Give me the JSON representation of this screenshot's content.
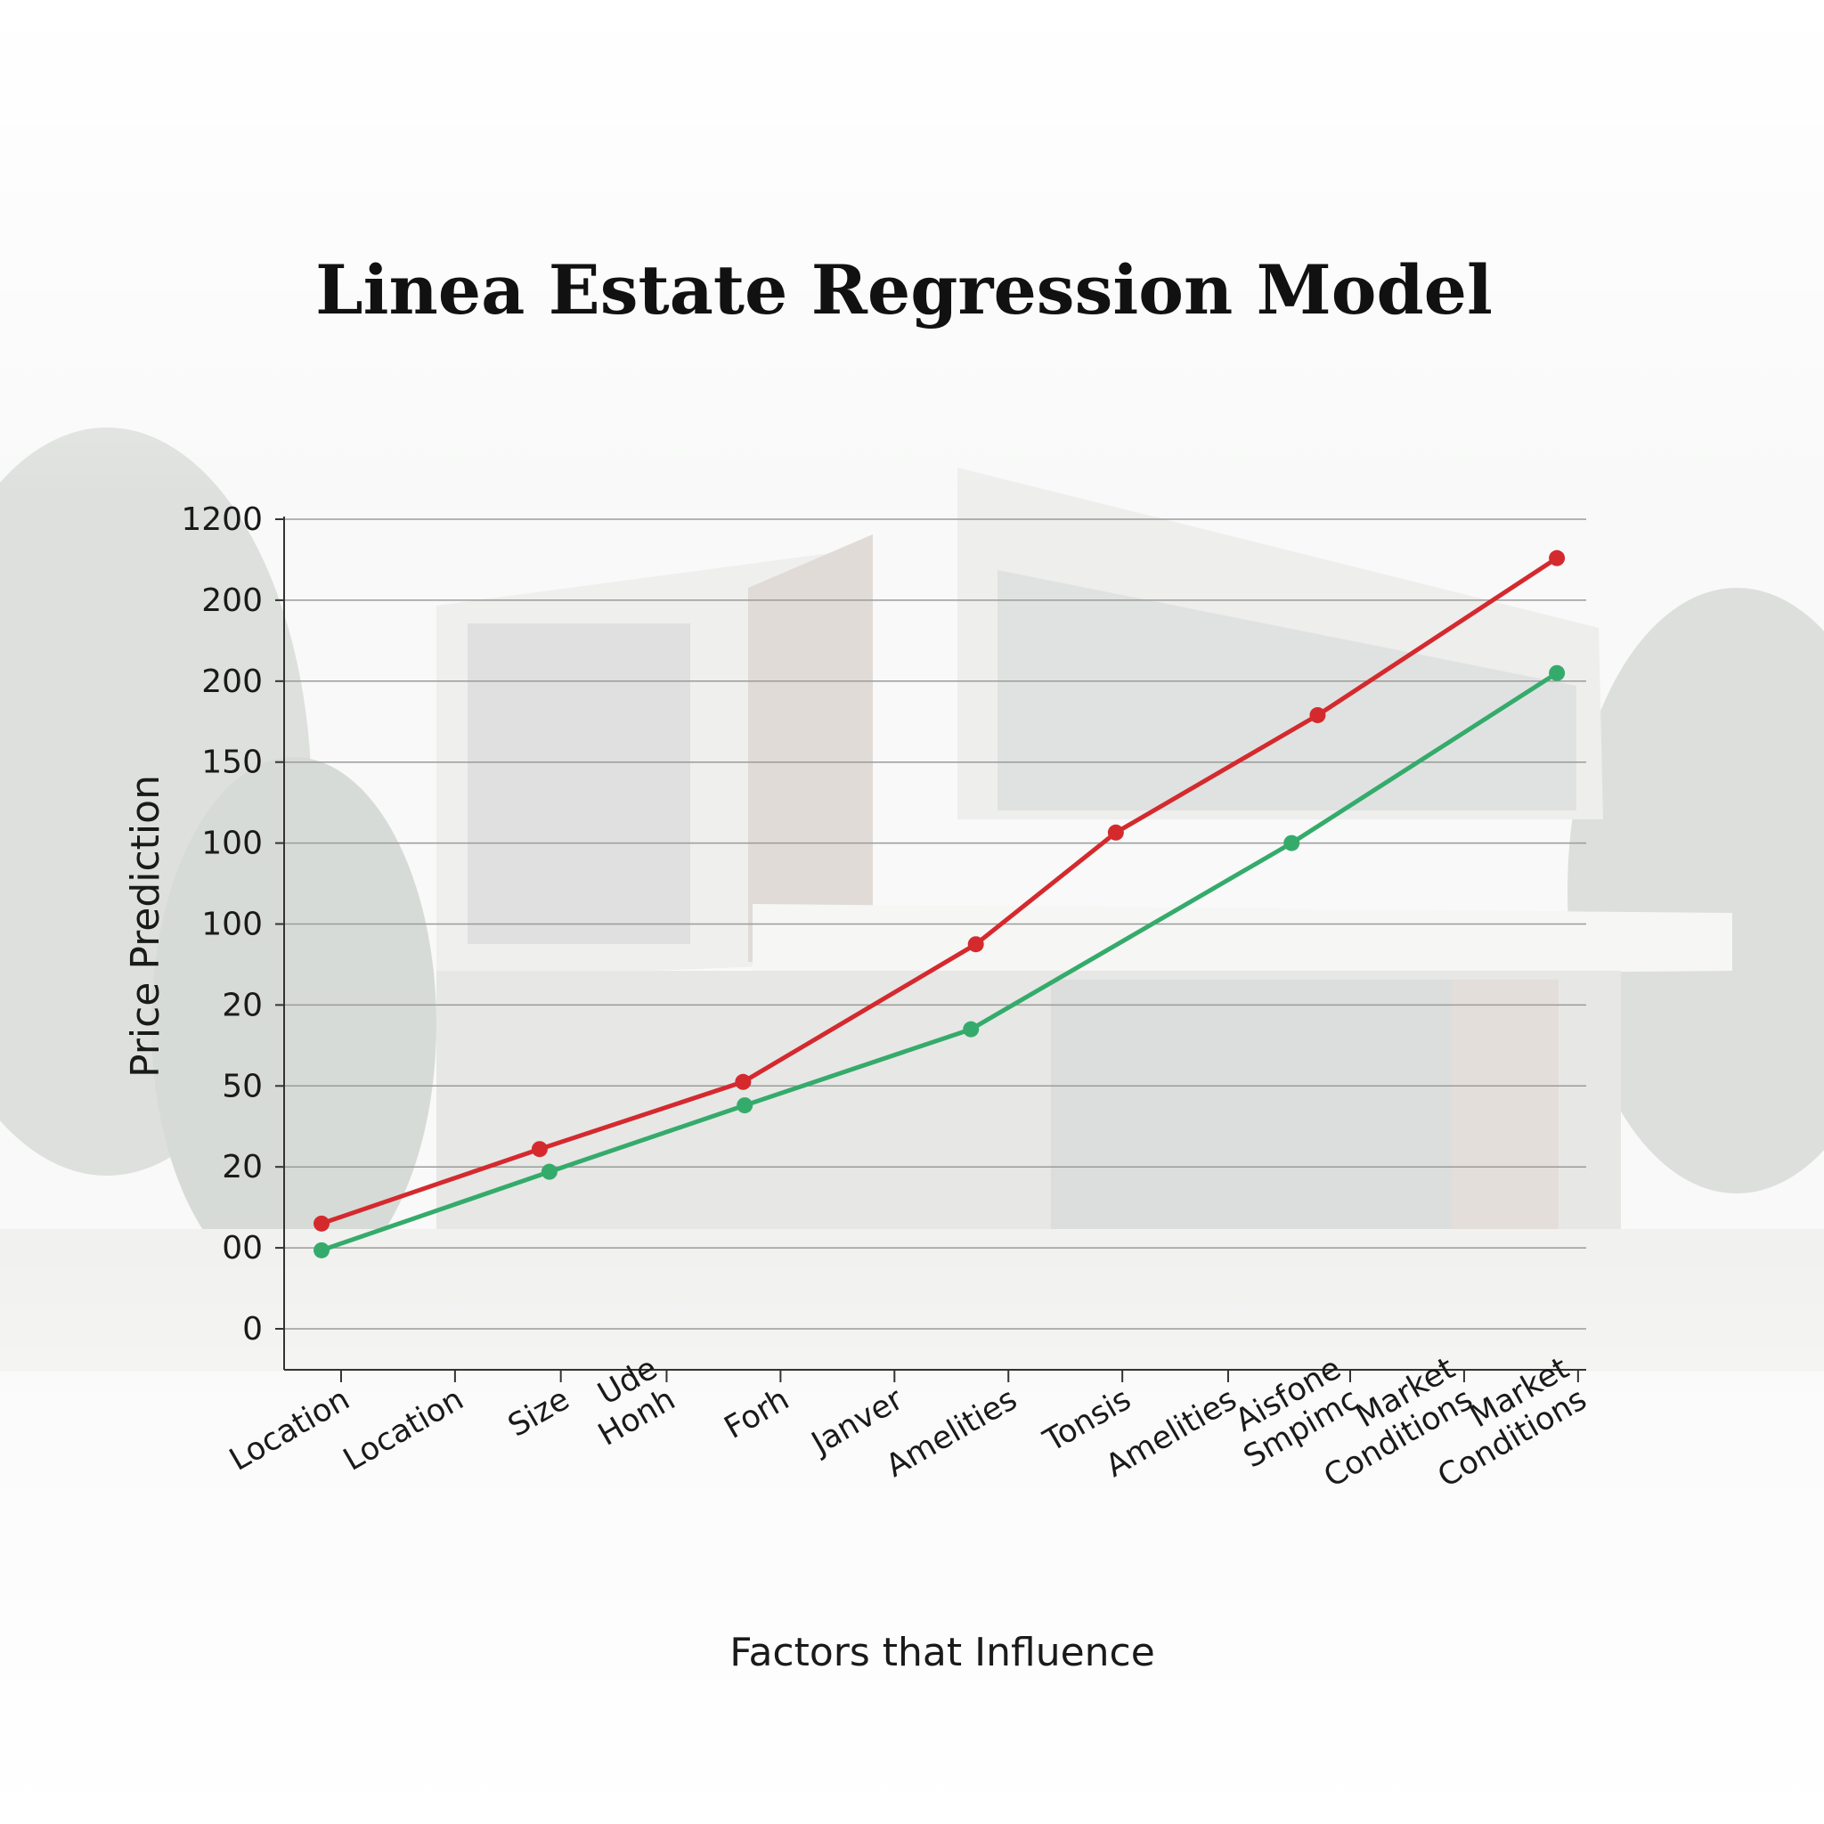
{
  "chart_data": {
    "type": "line",
    "title": "Linea Estate Regression Model",
    "xlabel": "Factors that Influence",
    "ylabel": "Price Prediction",
    "y_tick_labels": [
      "0",
      "00",
      "20",
      "50",
      "20",
      "100",
      "100",
      "150",
      "200",
      "200",
      "1200"
    ],
    "y_tick_values": [
      0,
      1,
      2,
      3,
      4,
      5,
      6,
      7,
      8,
      9,
      10
    ],
    "ylim": [
      -0.5,
      10
    ],
    "categories": [
      "Location",
      "Location",
      "Size",
      "Ude\nHonh",
      "Forh",
      "Janver",
      "Amelities",
      "Tonsis",
      "Amelities",
      "Aisfone\nSmpimc",
      "Market\nConditions",
      "Market\nConditions"
    ],
    "category_positions": [
      0.35,
      1.05,
      1.7,
      2.35,
      3.05,
      3.75,
      4.45,
      5.15,
      5.8,
      6.55,
      7.25,
      7.95
    ],
    "xlim": [
      0,
      8
    ],
    "grid": true,
    "legend": "none",
    "series": [
      {
        "color": "#d42a2e",
        "x": [
          0.23,
          1.57,
          2.82,
          4.25,
          5.11,
          6.35,
          7.82
        ],
        "y": [
          1.3,
          2.22,
          3.05,
          4.75,
          6.13,
          7.58,
          9.52
        ]
      },
      {
        "color": "#35ab6b",
        "x": [
          0.23,
          1.63,
          2.83,
          4.22,
          6.19,
          7.82
        ],
        "y": [
          0.97,
          1.94,
          2.76,
          3.7,
          6.0,
          8.1
        ]
      }
    ]
  }
}
